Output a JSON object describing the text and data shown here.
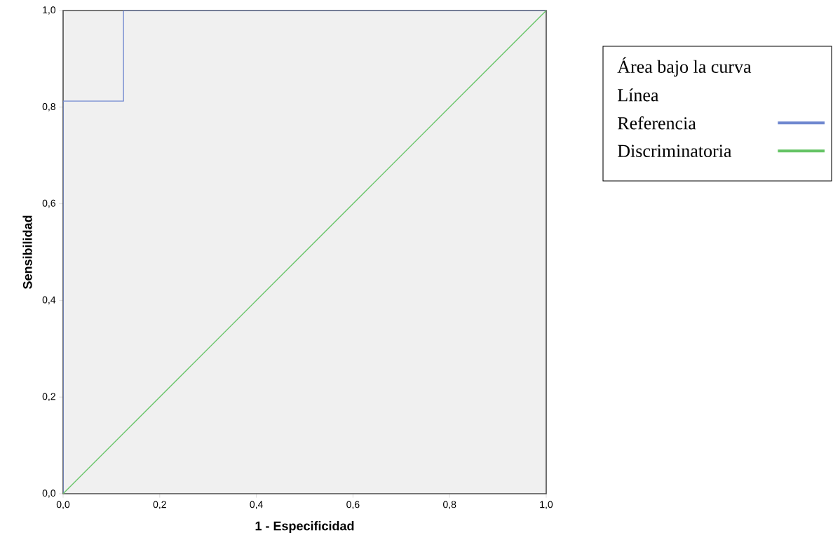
{
  "chart_data": {
    "type": "line",
    "xlabel": "1 - Especificidad",
    "ylabel": "Sensibilidad",
    "legend_title": "Área bajo la curva",
    "annotations": [
      "Línea"
    ],
    "series": [
      {
        "name": "Referencia",
        "color": "#7088d0",
        "x": [
          0,
          0,
          0.125,
          0.125,
          1
        ],
        "values": [
          0,
          0.8125,
          0.8125,
          1,
          1
        ]
      },
      {
        "name": "Discriminatoria",
        "color": "#66c466",
        "x": [
          0,
          1
        ],
        "values": [
          0,
          1
        ]
      }
    ],
    "xlim": [
      0,
      1
    ],
    "ylim": [
      0,
      1
    ],
    "xticks": [
      {
        "value": 0,
        "label": "0,0"
      },
      {
        "value": 0.2,
        "label": "0,2"
      },
      {
        "value": 0.4,
        "label": "0,4"
      },
      {
        "value": 0.6,
        "label": "0,6"
      },
      {
        "value": 0.8,
        "label": "0,8"
      },
      {
        "value": 1,
        "label": "1,0"
      }
    ],
    "yticks": [
      {
        "value": 0,
        "label": "0,0"
      },
      {
        "value": 0.2,
        "label": "0,2"
      },
      {
        "value": 0.4,
        "label": "0,4"
      },
      {
        "value": 0.6,
        "label": "0,6"
      },
      {
        "value": 0.8,
        "label": "0,8"
      },
      {
        "value": 1,
        "label": "1,0"
      }
    ],
    "grid": false,
    "legend": "top right",
    "marker": "none",
    "line_style": "solid"
  }
}
